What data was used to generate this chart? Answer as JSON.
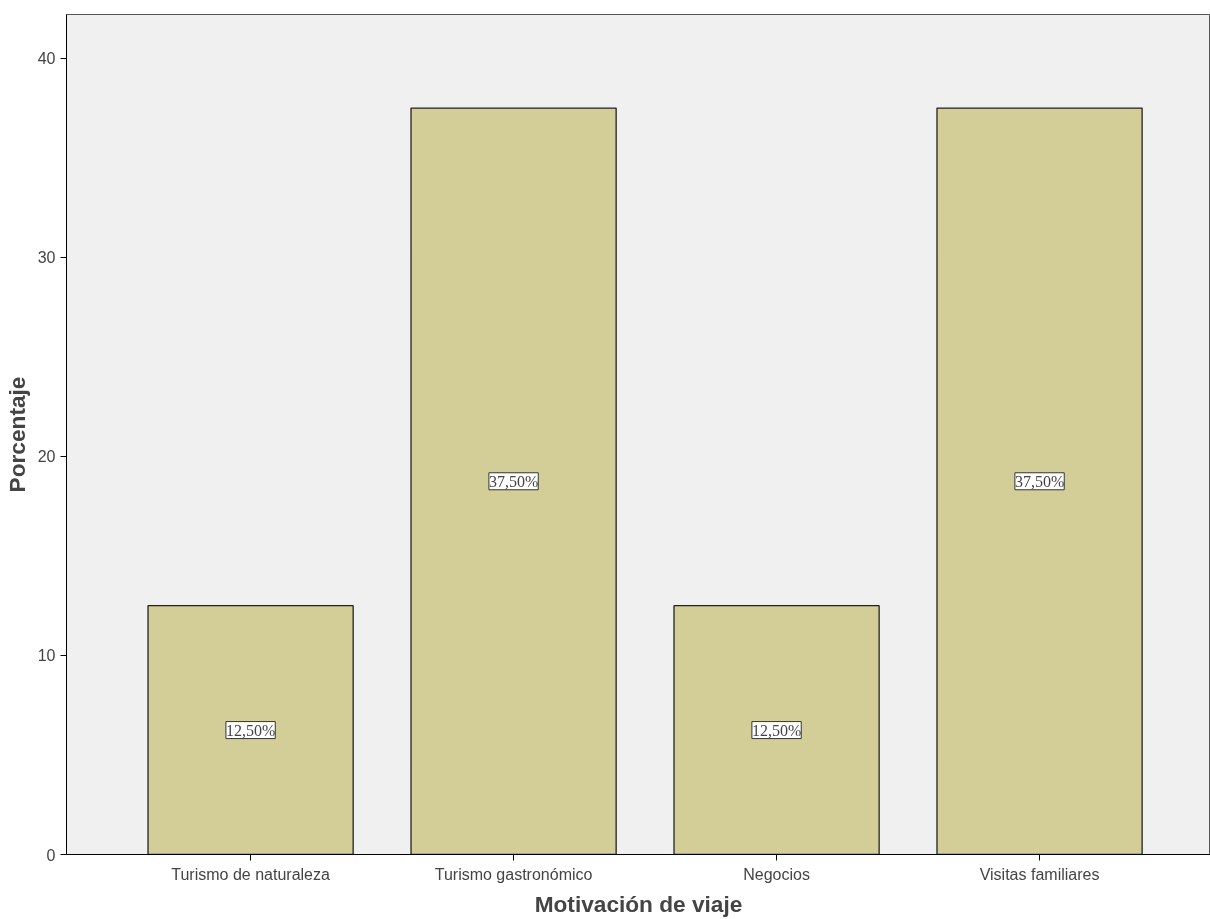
{
  "chart_data": {
    "type": "bar",
    "xlabel": "Motivación de viaje",
    "ylabel": "Porcentaje",
    "categories": [
      "Turismo de naturaleza",
      "Turismo gastronómico",
      "Negocios",
      "Visitas familiares"
    ],
    "values": [
      12.5,
      37.5,
      12.5,
      37.5
    ],
    "value_labels": [
      "12,50%",
      "37,50%",
      "12,50%",
      "37,50%"
    ],
    "color": "#d3ce97",
    "ylim": [
      0,
      42.2
    ],
    "yticks": [
      0,
      10,
      20,
      30,
      40
    ],
    "grid": false
  }
}
